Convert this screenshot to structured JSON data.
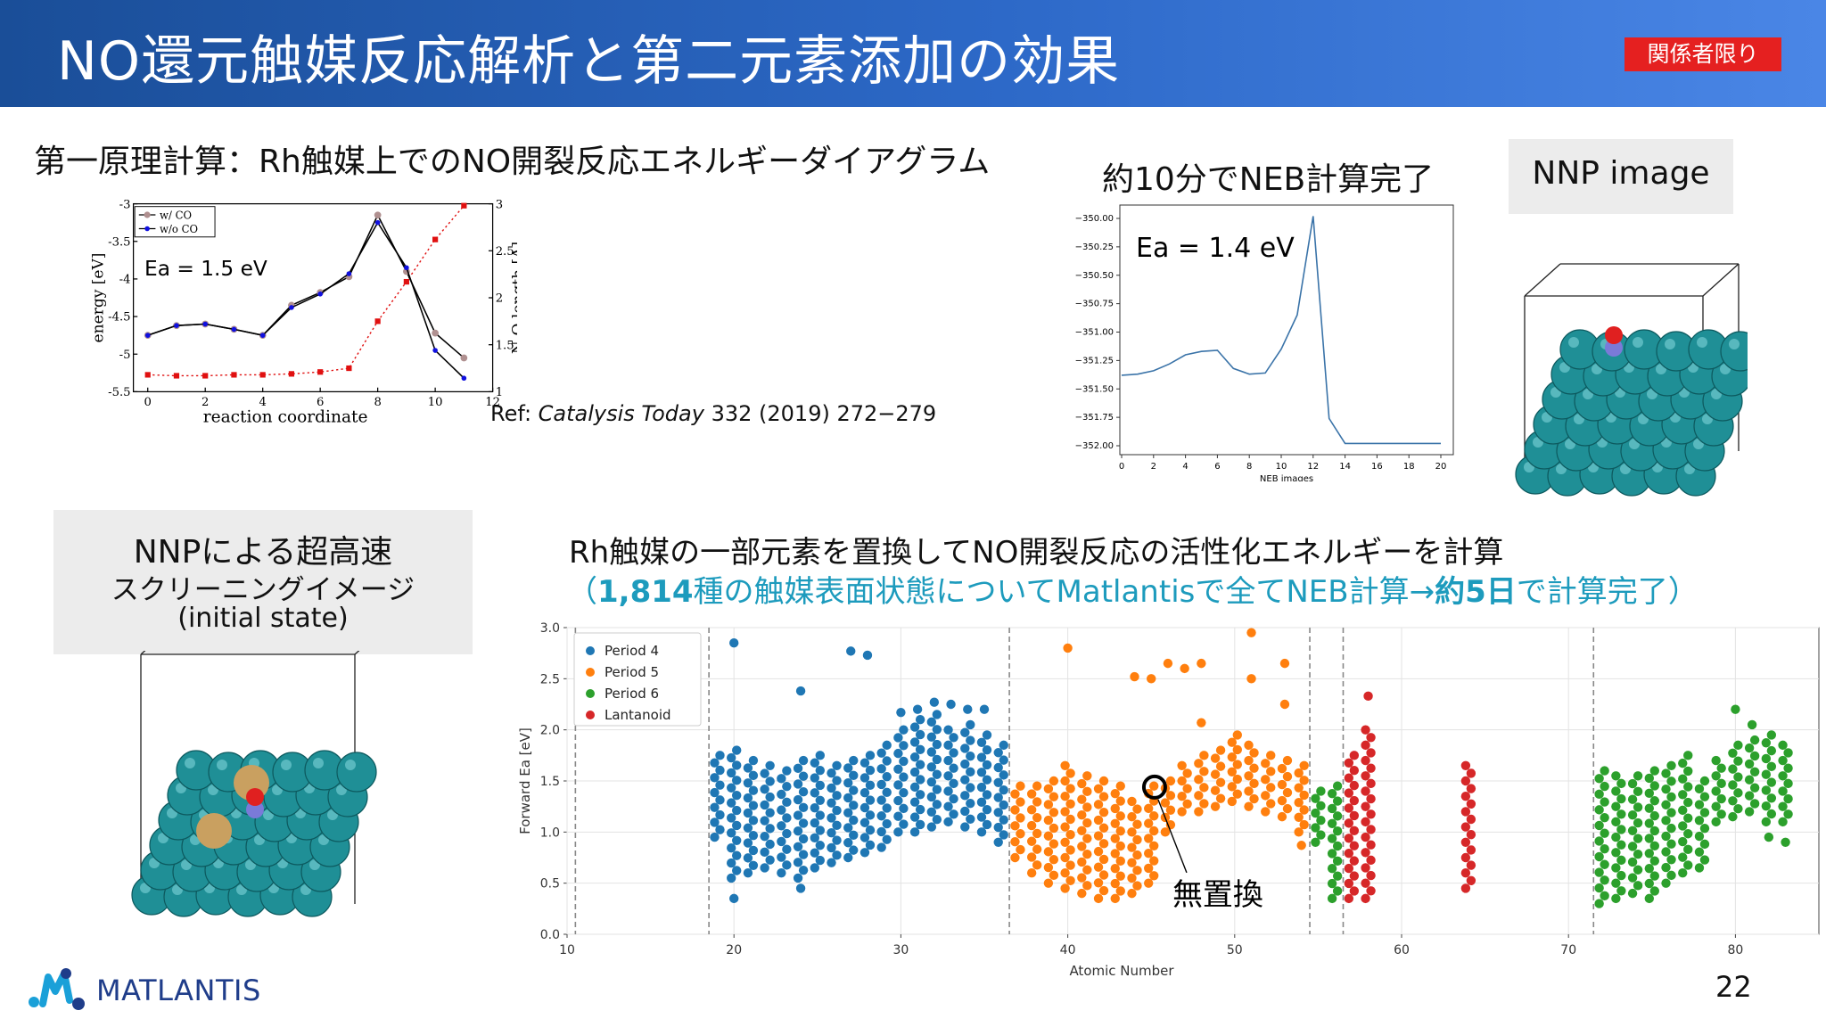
{
  "header": {
    "title": "NO還元触媒反応解析と第二元素添加の効果",
    "badge": "関係者限り"
  },
  "energy_section": {
    "title": "第一原理計算：Rh触媒上でのNO開裂反応エネルギーダイアグラム",
    "ref_prefix": "Ref: ",
    "ref_journal": "Catalysis Today",
    "ref_rest": " 332 (2019) 272−279"
  },
  "neb_section": {
    "title": "約10分でNEB計算完了"
  },
  "nnp_image": {
    "label": "NNP image"
  },
  "screening_box": {
    "line1": "NNPによる超高速",
    "line2": "スクリーニングイメージ",
    "line3": "(initial state)"
  },
  "screening_section": {
    "title": "Rh触媒の一部元素を置換してNO開裂反応の活性化エネルギーを計算",
    "sub_open": "（",
    "sub_count": "1,814",
    "sub_mid": "種の触媒表面状態についてMatlantisで全てNEB計算→",
    "sub_days": "約5日",
    "sub_close": "で計算完了）"
  },
  "footer": {
    "logo": "MATLANTIS",
    "page": "22"
  },
  "colors": {
    "period4": "#1f77b4",
    "period5": "#ff7f0e",
    "period6": "#2ca02c",
    "lantanoid": "#d62728",
    "withCO": "#b09090",
    "withoutCO": "#1010e0",
    "NO_length": "#e01010",
    "atom": "#1f8f96"
  },
  "chart_data": [
    {
      "type": "line",
      "xlabel": "reaction coordinate",
      "ylabel": "energy [eV]",
      "y2label": "N-O length [A]",
      "xlim": [
        -0.5,
        12
      ],
      "ylim": [
        -5.5,
        -3
      ],
      "y2lim": [
        1,
        3
      ],
      "xticks": [
        "0",
        "2",
        "4",
        "6",
        "8",
        "10",
        "12"
      ],
      "yticks": [
        "-5.5",
        "-5",
        "-4.5",
        "-4",
        "-3.5",
        "-3"
      ],
      "y2ticks": [
        "1",
        "1.5",
        "2",
        "2.5",
        "3"
      ],
      "annotation": "Ea = 1.5 eV",
      "series": [
        {
          "name": "w/ CO",
          "axis": "left",
          "x": [
            0,
            1,
            2,
            3,
            4,
            5,
            6,
            7,
            8,
            9,
            10,
            11
          ],
          "values": [
            -4.75,
            -4.62,
            -4.6,
            -4.67,
            -4.75,
            -4.35,
            -4.18,
            -3.97,
            -3.15,
            -3.9,
            -4.72,
            -5.05
          ]
        },
        {
          "name": "w/o CO",
          "axis": "left",
          "x": [
            0,
            1,
            2,
            3,
            4,
            5,
            6,
            7,
            8,
            9,
            10,
            11
          ],
          "values": [
            -4.75,
            -4.62,
            -4.6,
            -4.67,
            -4.75,
            -4.38,
            -4.2,
            -3.93,
            -3.25,
            -3.85,
            -4.95,
            -5.32
          ]
        },
        {
          "name": "N-O length",
          "axis": "right",
          "x": [
            0,
            1,
            2,
            3,
            4,
            5,
            6,
            7,
            8,
            9,
            10,
            11
          ],
          "values": [
            1.18,
            1.17,
            1.17,
            1.18,
            1.18,
            1.19,
            1.21,
            1.25,
            1.75,
            2.17,
            2.62,
            2.98
          ]
        }
      ]
    },
    {
      "type": "line",
      "xlabel": "NEB images",
      "ylabel": "",
      "xlim": [
        0,
        20
      ],
      "ylim": [
        -352.0,
        -350.0
      ],
      "xticks": [
        "0",
        "2",
        "4",
        "6",
        "8",
        "10",
        "12",
        "14",
        "16",
        "18",
        "20"
      ],
      "yticks": [
        "−350.00",
        "−350.25",
        "−350.50",
        "−350.75",
        "−351.00",
        "−351.25",
        "−351.50",
        "−351.75",
        "−352.00"
      ],
      "annotation": "Ea = 1.4 eV",
      "x": [
        0,
        1,
        2,
        3,
        4,
        5,
        6,
        7,
        8,
        9,
        10,
        11,
        12,
        13,
        14,
        15,
        16,
        17,
        18,
        19,
        20
      ],
      "values": [
        -351.38,
        -351.37,
        -351.34,
        -351.28,
        -351.2,
        -351.17,
        -351.16,
        -351.32,
        -351.37,
        -351.36,
        -351.15,
        -350.85,
        -349.98,
        -351.76,
        -351.98,
        -351.98,
        -351.98,
        -351.98,
        -351.98,
        -351.98,
        -351.98
      ]
    },
    {
      "type": "scatter",
      "xlabel": "Atomic Number",
      "ylabel": "Forward Ea [eV]",
      "xlim": [
        10,
        85
      ],
      "ylim": [
        0,
        3
      ],
      "xticks": [
        10,
        20,
        30,
        40,
        50,
        60,
        70,
        80
      ],
      "yticks": [
        "0.0",
        "0.5",
        "1.0",
        "1.5",
        "2.0",
        "2.5",
        "3.0"
      ],
      "grid": true,
      "legend_position": "top-left",
      "annotation": "無置換",
      "annotation_point": [
        45.2,
        1.44
      ],
      "dividers": [
        10.5,
        18.5,
        36.5,
        54.5,
        56.5,
        71.5
      ],
      "series": [
        {
          "name": "Period 4",
          "x": [
            19,
            20,
            21,
            22,
            23,
            24,
            25,
            26,
            27,
            28,
            29,
            30,
            31,
            32,
            33,
            34,
            35,
            36
          ],
          "values": [
            [
              0.95,
              1.75
            ],
            [
              0.55,
              1.8
            ],
            [
              0.6,
              1.7
            ],
            [
              0.65,
              1.65
            ],
            [
              0.6,
              1.6
            ],
            [
              0.55,
              1.7
            ],
            [
              0.65,
              1.75
            ],
            [
              0.7,
              1.65
            ],
            [
              0.75,
              1.7
            ],
            [
              0.8,
              1.75
            ],
            [
              0.85,
              1.85
            ],
            [
              1.0,
              2.0
            ],
            [
              1.0,
              2.1
            ],
            [
              1.05,
              2.15
            ],
            [
              1.1,
              2.0
            ],
            [
              1.05,
              2.05
            ],
            [
              1.0,
              1.95
            ],
            [
              0.9,
              1.85
            ]
          ],
          "outliers": [
            [
              20,
              2.85
            ],
            [
              20,
              0.35
            ],
            [
              24,
              2.38
            ],
            [
              24,
              0.45
            ],
            [
              27,
              2.77
            ],
            [
              28,
              2.73
            ],
            [
              30,
              2.17
            ],
            [
              31,
              2.2
            ],
            [
              32,
              2.27
            ],
            [
              33,
              2.25
            ],
            [
              34,
              2.2
            ],
            [
              35,
              2.2
            ]
          ]
        },
        {
          "name": "Period 5",
          "x": [
            37,
            38,
            39,
            40,
            41,
            42,
            43,
            44,
            45,
            46,
            47,
            48,
            49,
            50,
            51,
            52,
            53,
            54
          ],
          "values": [
            [
              0.75,
              1.45
            ],
            [
              0.6,
              1.45
            ],
            [
              0.5,
              1.5
            ],
            [
              0.45,
              1.65
            ],
            [
              0.4,
              1.55
            ],
            [
              0.35,
              1.5
            ],
            [
              0.35,
              1.45
            ],
            [
              0.4,
              1.3
            ],
            [
              0.5,
              1.45
            ],
            [
              1.0,
              1.5
            ],
            [
              1.2,
              1.65
            ],
            [
              1.2,
              1.75
            ],
            [
              1.25,
              1.8
            ],
            [
              1.3,
              1.95
            ],
            [
              1.25,
              1.85
            ],
            [
              1.2,
              1.75
            ],
            [
              1.15,
              1.7
            ],
            [
              1.0,
              1.65
            ]
          ],
          "outliers": [
            [
              40,
              2.8
            ],
            [
              44,
              2.52
            ],
            [
              45,
              2.5
            ],
            [
              46,
              2.65
            ],
            [
              47,
              2.6
            ],
            [
              48,
              2.65
            ],
            [
              48,
              2.07
            ],
            [
              51,
              2.95
            ],
            [
              51,
              2.5
            ],
            [
              53,
              2.65
            ],
            [
              53,
              2.25
            ],
            [
              54,
              0.87
            ]
          ]
        },
        {
          "name": "Period 6",
          "x": [
            55,
            56,
            72,
            73,
            74,
            75,
            76,
            77,
            78,
            79,
            80,
            81,
            82,
            83
          ],
          "values": [
            [
              0.9,
              1.4
            ],
            [
              0.35,
              1.45
            ],
            [
              0.3,
              1.6
            ],
            [
              0.35,
              1.55
            ],
            [
              0.4,
              1.55
            ],
            [
              0.35,
              1.6
            ],
            [
              0.5,
              1.65
            ],
            [
              0.6,
              1.75
            ],
            [
              0.65,
              1.5
            ],
            [
              1.1,
              1.7
            ],
            [
              1.15,
              1.85
            ],
            [
              1.2,
              1.9
            ],
            [
              1.1,
              1.95
            ],
            [
              1.1,
              1.85
            ]
          ],
          "outliers": [
            [
              80,
              2.2
            ],
            [
              81,
              2.05
            ],
            [
              82,
              0.95
            ],
            [
              83,
              0.9
            ]
          ]
        },
        {
          "name": "Lantanoid",
          "x": [
            57,
            58,
            64
          ],
          "values": [
            [
              0.35,
              1.75
            ],
            [
              0.35,
              2.0
            ],
            [
              0.45,
              1.65
            ]
          ],
          "outliers": [
            [
              58,
              2.33
            ]
          ]
        }
      ]
    }
  ]
}
